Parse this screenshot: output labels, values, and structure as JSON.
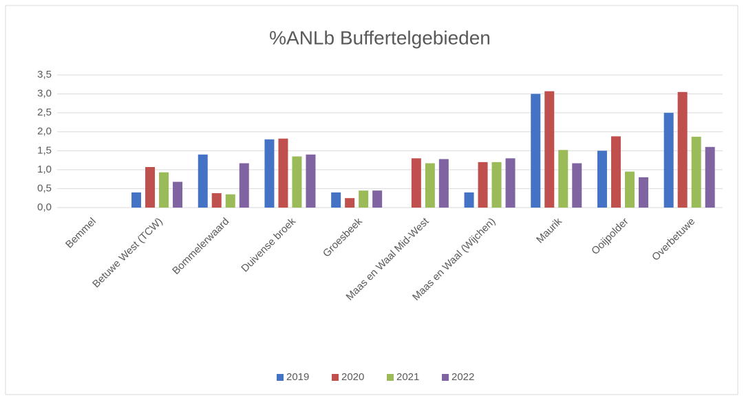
{
  "chart_data": {
    "type": "bar",
    "title": "%ANLb Buffertelgebieden",
    "categories": [
      "Bemmel",
      "Betuwe West (TCW)",
      "Bommelerwaard",
      "Duivense broek",
      "Groesbeek",
      "Maas en Waal Mid-West",
      "Maas en Waal (Wijchen)",
      "Maurik",
      "Ooijpolder",
      "Overbetuwe"
    ],
    "series": [
      {
        "name": "2019",
        "color": "#4472c4",
        "values": [
          0,
          0.4,
          1.4,
          1.8,
          0.4,
          0,
          0.4,
          3.0,
          1.5,
          2.5
        ]
      },
      {
        "name": "2020",
        "color": "#c0504d",
        "values": [
          0,
          1.07,
          0.38,
          1.82,
          0.25,
          1.3,
          1.2,
          3.07,
          1.88,
          3.05
        ]
      },
      {
        "name": "2021",
        "color": "#9bbb59",
        "values": [
          0,
          0.93,
          0.35,
          1.35,
          0.45,
          1.17,
          1.2,
          1.52,
          0.95,
          1.87
        ]
      },
      {
        "name": "2022",
        "color": "#8064a2",
        "values": [
          0,
          0.68,
          1.17,
          1.4,
          0.45,
          1.28,
          1.3,
          1.17,
          0.8,
          1.6
        ]
      }
    ],
    "ylim": [
      0,
      3.5
    ],
    "yticks": [
      {
        "value": 0,
        "label": "0,0"
      },
      {
        "value": 0.5,
        "label": "0,5"
      },
      {
        "value": 1,
        "label": "1,0"
      },
      {
        "value": 1.5,
        "label": "1,5"
      },
      {
        "value": 2,
        "label": "2,0"
      },
      {
        "value": 2.5,
        "label": "2,5"
      },
      {
        "value": 3,
        "label": "3,0"
      },
      {
        "value": 3.5,
        "label": "3,5"
      }
    ],
    "grid": true,
    "legend": "bottom"
  }
}
